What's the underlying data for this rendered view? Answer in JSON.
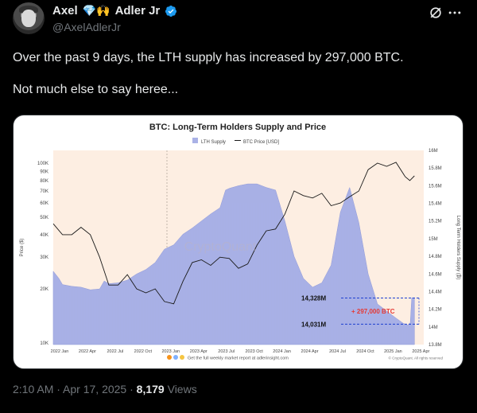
{
  "author": {
    "name_first": "Axel",
    "name_second": "Adler Jr",
    "emoji": "💎🙌",
    "handle": "@AxelAdlerJr"
  },
  "post": {
    "line1": "Over the past 9 days, the LTH supply has increased by 297,000 BTC.",
    "line2": "Not much else to say heree..."
  },
  "meta": {
    "time": "2:10 AM",
    "separator": " · ",
    "date": "Apr 17, 2025",
    "views_count": "8,179",
    "views_label": " Views"
  },
  "icons": {
    "verified": "verified-badge-icon",
    "grok": "grok-icon",
    "more": "more-options-icon"
  },
  "chart_data": {
    "type": "area",
    "title": "BTC: Long-Term Holders Supply and Price",
    "legend": [
      "LTH Supply",
      "BTC Price [USD]"
    ],
    "ylabel_left": "Price ($)",
    "ylabel_right": "Long Term Holders Supply (₿)",
    "y_left_ticks": [
      "100K",
      "90K",
      "80K",
      "70K",
      "60K",
      "50K",
      "40K",
      "30K",
      "20K",
      "10K"
    ],
    "y_left_values": [
      100000,
      90000,
      80000,
      70000,
      60000,
      50000,
      40000,
      30000,
      20000,
      10000
    ],
    "y_left_scale": "log",
    "y_right_ticks": [
      "16M",
      "15.8M",
      "15.6M",
      "15.4M",
      "15.2M",
      "15M",
      "14.8M",
      "14.6M",
      "14.4M",
      "14.2M",
      "14M",
      "13.8M"
    ],
    "y_right_range": [
      13.8,
      16
    ],
    "x_ticks": [
      "2022 Jan",
      "2022 Apr",
      "2022 Jul",
      "2022 Oct",
      "2023 Jan",
      "2023 Apr",
      "2023 Jul",
      "2023 Oct",
      "2024 Jan",
      "2024 Apr",
      "2024 Jul",
      "2024 Oct",
      "2025 Jan",
      "2025 Apr"
    ],
    "x_range": [
      0,
      40
    ],
    "supply": [
      [
        0,
        14.63
      ],
      [
        0.6,
        14.55
      ],
      [
        1,
        14.48
      ],
      [
        2,
        14.46
      ],
      [
        3,
        14.45
      ],
      [
        4,
        14.42
      ],
      [
        5,
        14.43
      ],
      [
        5.5,
        14.52
      ],
      [
        6,
        14.49
      ],
      [
        7,
        14.5
      ],
      [
        8,
        14.53
      ],
      [
        9,
        14.6
      ],
      [
        10,
        14.65
      ],
      [
        11,
        14.73
      ],
      [
        12,
        14.88
      ],
      [
        13,
        14.93
      ],
      [
        14,
        15.05
      ],
      [
        15,
        15.12
      ],
      [
        16,
        15.2
      ],
      [
        17,
        15.28
      ],
      [
        18,
        15.35
      ],
      [
        18.6,
        15.55
      ],
      [
        19,
        15.57
      ],
      [
        20,
        15.6
      ],
      [
        21,
        15.62
      ],
      [
        22,
        15.62
      ],
      [
        23,
        15.58
      ],
      [
        24,
        15.55
      ],
      [
        25,
        15.2
      ],
      [
        26,
        14.8
      ],
      [
        27,
        14.55
      ],
      [
        28,
        14.45
      ],
      [
        29,
        14.5
      ],
      [
        30,
        14.7
      ],
      [
        31,
        15.3
      ],
      [
        32,
        15.58
      ],
      [
        33,
        15.18
      ],
      [
        34,
        14.6
      ],
      [
        35,
        14.26
      ],
      [
        36,
        14.18
      ],
      [
        37,
        14.1
      ],
      [
        37.8,
        14.04
      ],
      [
        38.3,
        14.02
      ],
      [
        38.55,
        14.05
      ],
      [
        38.7,
        14.33
      ],
      [
        39,
        14.33
      ]
    ],
    "price": [
      [
        0,
        46000
      ],
      [
        1,
        40000
      ],
      [
        2,
        40000
      ],
      [
        3,
        44000
      ],
      [
        4,
        40000
      ],
      [
        5,
        30000
      ],
      [
        6,
        21000
      ],
      [
        7,
        21000
      ],
      [
        8,
        24000
      ],
      [
        9,
        20000
      ],
      [
        10,
        19000
      ],
      [
        11,
        20000
      ],
      [
        12,
        17000
      ],
      [
        13,
        16500
      ],
      [
        14,
        22000
      ],
      [
        15,
        28000
      ],
      [
        16,
        29000
      ],
      [
        17,
        27000
      ],
      [
        18,
        30000
      ],
      [
        19,
        29500
      ],
      [
        20,
        26000
      ],
      [
        21,
        27500
      ],
      [
        22,
        35000
      ],
      [
        23,
        42000
      ],
      [
        24,
        43000
      ],
      [
        25,
        52000
      ],
      [
        26,
        70000
      ],
      [
        27,
        66000
      ],
      [
        28,
        64000
      ],
      [
        29,
        68000
      ],
      [
        30,
        58000
      ],
      [
        31,
        60000
      ],
      [
        32,
        65000
      ],
      [
        33,
        70000
      ],
      [
        34,
        92000
      ],
      [
        35,
        100000
      ],
      [
        36,
        96000
      ],
      [
        37,
        101000
      ],
      [
        38,
        84000
      ],
      [
        38.5,
        80000
      ],
      [
        39,
        85000
      ]
    ],
    "annotations": {
      "upper": "14,328M",
      "lower": "14,031M",
      "delta": "+ 297,000 BTC",
      "upper_value": 14.328,
      "lower_value": 14.031
    },
    "watermark": "CryptoQuant",
    "footer": "Get the full weekly market report at adlerinsight.com",
    "copyright": "© CryptoQuant. All rights reserved",
    "colors": {
      "supply_fill": "#aab2e6",
      "supply_stroke": "#8f99d8",
      "price_line": "#1a1a1a",
      "annotation_red": "#e53935",
      "annotation_blue": "#1e40d0",
      "halving_bg": "#fdeee2"
    }
  }
}
